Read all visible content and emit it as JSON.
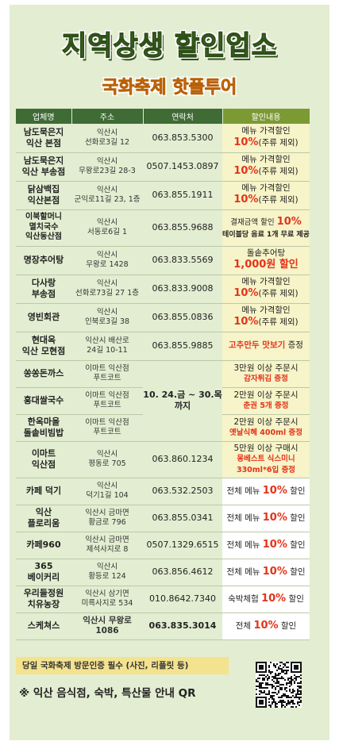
{
  "title": "지역상생 할인업소",
  "subtitle": "국화축제 핫플투어",
  "table": {
    "headers": [
      "업체명",
      "주소",
      "연락처",
      "할인내용"
    ],
    "rows": [
      {
        "name": [
          "남도묵은지",
          "익산 본점"
        ],
        "addr": [
          "익산시",
          "선화로3길 12"
        ],
        "tel": "063.853.5300",
        "disc": {
          "l1": "메뉴 가격할인",
          "red": "10%",
          "rest": "(주류 제외)"
        }
      },
      {
        "name": [
          "남도묵은지",
          "익산 부송점"
        ],
        "addr": [
          "익산시",
          "무왕로23길 28-3"
        ],
        "tel": "0507.1453.0897",
        "disc": {
          "l1": "메뉴 가격할인",
          "red": "10%",
          "rest": "(주류 제외)"
        }
      },
      {
        "name": [
          "닭삼백집",
          "익산본점"
        ],
        "addr": [
          "익산시",
          "군익로11길 23, 1층"
        ],
        "tel": "063.855.1911",
        "disc": {
          "l1": "메뉴 가격할인",
          "red": "10%",
          "rest": "(주류 제외)"
        }
      },
      {
        "name": [
          "이북할머니",
          "멸치국수",
          "익산동산점"
        ],
        "addr": [
          "익산시",
          "서동로6길 1"
        ],
        "tel": "063.855.9688",
        "disc": {
          "l1pre": "결재금액 할인 ",
          "l1red": "10%",
          "l2": "테이블당 음료 1개 무료 제공"
        }
      },
      {
        "name": [
          "명장추어탕"
        ],
        "addr": [
          "익산시",
          "무왕로 1428"
        ],
        "tel": "063.833.5569",
        "disc": {
          "l1": "돌솥추어탕",
          "red": "1,000원 할인"
        }
      },
      {
        "name": [
          "다사랑",
          "부송점"
        ],
        "addr": [
          "익산시",
          "선화로73길 27 1층"
        ],
        "tel": "063.833.9008",
        "disc": {
          "l1": "메뉴 가격할인",
          "red": "10%",
          "rest": "(주류 제외)"
        }
      },
      {
        "name": [
          "영빈회관"
        ],
        "addr": [
          "익산시",
          "인북로3길 38"
        ],
        "tel": "063.855.0836",
        "disc": {
          "l1": "메뉴 가격할인",
          "red": "10%",
          "rest": "(주류 제외)"
        }
      },
      {
        "name": [
          "현대옥",
          "익산 모현점"
        ],
        "addr": [
          "익산시 배산로",
          "24길 10-11"
        ],
        "tel": "063.855.9885",
        "disc": {
          "red": "고추만두 맛보기",
          "rest": " 증정"
        }
      },
      {
        "name": [
          "쏭쏭돈까스"
        ],
        "addr": [
          "이마트 익산점",
          "푸트코트"
        ],
        "tel": "",
        "disc": {
          "l1": "3만원 이상 주문시",
          "red": "감자튀김 증정"
        }
      },
      {
        "name": [
          "홍대쌀국수"
        ],
        "addr": [
          "이마트 익산점",
          "푸트코트"
        ],
        "tel": "",
        "disc": {
          "l1": "2만원 이상 주문시",
          "red": "춘권 5개 증정"
        }
      },
      {
        "name": [
          "한옥마을",
          "돌솥비빔밥"
        ],
        "addr": [
          "이마트 익산점",
          "푸트코트"
        ],
        "tel": "",
        "disc": {
          "l1": "2만원 이상 주문시",
          "red": "옛날식혜 400ml 증정"
        }
      },
      {
        "name": [
          "이마트",
          "익산점"
        ],
        "addr": [
          "익산시",
          "평동로 705"
        ],
        "tel": "063.860.1234",
        "disc": {
          "l1": "5만원 이상 구매시",
          "red": "몽베스트 식스미니",
          "red2": "330ml*6입 증정"
        }
      },
      {
        "name": [
          "카페 덕기"
        ],
        "addr": [
          "익산시",
          "덕기1길 104"
        ],
        "tel": "063.532.2503",
        "disc": {
          "pre": "전체 메뉴 ",
          "red": "10%",
          "rest": " 할인"
        }
      },
      {
        "name": [
          "익산",
          "플로리움"
        ],
        "addr": [
          "익산시 금마면",
          "황금로 796"
        ],
        "tel": "063.855.0341",
        "disc": {
          "pre": "전체 메뉴 ",
          "red": "10%",
          "rest": " 할인"
        }
      },
      {
        "name": [
          "카페960"
        ],
        "addr": [
          "익산시 금마면",
          "제석사지로 8"
        ],
        "tel": "0507.1329.6515",
        "disc": {
          "pre": "전체 메뉴 ",
          "red": "10%",
          "rest": " 할인"
        }
      },
      {
        "name": [
          "365",
          "베이커리"
        ],
        "addr": [
          "익산시",
          "황등로 124"
        ],
        "tel": "063.856.4612",
        "disc": {
          "pre": "전체 메뉴 ",
          "red": "10%",
          "rest": " 할인"
        }
      },
      {
        "name": [
          "우리들정원",
          "치유농장"
        ],
        "addr": [
          "익산시 삼기면",
          "미륵사지로 534"
        ],
        "tel": "010.8642.7340",
        "disc": {
          "pre": "숙박체험 ",
          "red": "10%",
          "rest": " 할인"
        }
      },
      {
        "name": [
          "스케쳐스"
        ],
        "addr": [
          "익산시 무왕로",
          "1086"
        ],
        "tel": "063.835.3014",
        "disc": {
          "pre": "전체 ",
          "red": "10%",
          "rest": " 할인"
        }
      }
    ],
    "merged_tel": [
      "10. 24.금 ~ 30.목",
      "까지"
    ]
  },
  "footer": {
    "box": "당일 국화축제 방문인증 필수 (사진, 리플릿 등)",
    "note": "※ 익산 음식점, 숙박, 특산물 안내 QR"
  },
  "colors": {
    "background": "#e3edd1",
    "header": "#3f6b35",
    "highlight": "#e4331a",
    "discount_bg": "#f6f4c8",
    "title": "#4f7a2c",
    "subtitle": "#f29a1f"
  },
  "icons": [
    "qr-code-icon"
  ]
}
